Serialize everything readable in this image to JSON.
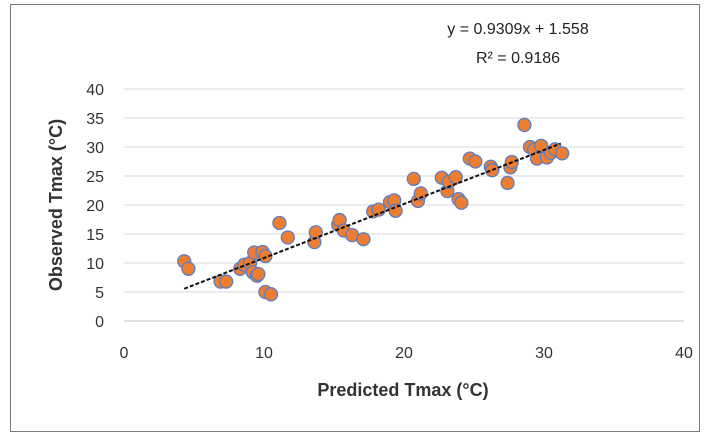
{
  "chart_data": {
    "type": "scatter",
    "title": "",
    "xlabel": "Predicted Tmax (°C)",
    "ylabel": "Observed Tmax (°C)",
    "xlim": [
      0,
      40
    ],
    "ylim": [
      0,
      40
    ],
    "x_ticks": [
      "0",
      "10",
      "20",
      "30",
      "40"
    ],
    "y_ticks": [
      "0",
      "5",
      "10",
      "15",
      "20",
      "25",
      "30",
      "35",
      "40"
    ],
    "grid": "horizontal",
    "legend": "none",
    "marker_color": "#ed7d31",
    "marker_edge_color": "#5b7fc4",
    "trendline": {
      "type": "linear",
      "slope": 0.9309,
      "intercept": 1.558,
      "x_range": [
        4.3,
        31.2
      ],
      "style": "dashed",
      "color": "#111111",
      "equation_label": "y = 0.9309x + 1.558",
      "r2_label": "R² = 0.9186"
    },
    "points": [
      {
        "x": 4.3,
        "y": 10.3
      },
      {
        "x": 4.6,
        "y": 9.0
      },
      {
        "x": 6.9,
        "y": 6.8
      },
      {
        "x": 7.3,
        "y": 6.8
      },
      {
        "x": 8.3,
        "y": 9.0
      },
      {
        "x": 8.6,
        "y": 9.7
      },
      {
        "x": 9.0,
        "y": 10.0
      },
      {
        "x": 9.2,
        "y": 8.4
      },
      {
        "x": 9.3,
        "y": 11.8
      },
      {
        "x": 9.5,
        "y": 7.8
      },
      {
        "x": 9.6,
        "y": 8.1
      },
      {
        "x": 9.9,
        "y": 11.9
      },
      {
        "x": 10.1,
        "y": 11.2
      },
      {
        "x": 10.1,
        "y": 5.0
      },
      {
        "x": 10.5,
        "y": 4.6
      },
      {
        "x": 11.1,
        "y": 16.9
      },
      {
        "x": 11.7,
        "y": 14.4
      },
      {
        "x": 13.6,
        "y": 13.6
      },
      {
        "x": 13.7,
        "y": 15.3
      },
      {
        "x": 15.3,
        "y": 16.6
      },
      {
        "x": 15.4,
        "y": 17.4
      },
      {
        "x": 15.7,
        "y": 15.6
      },
      {
        "x": 16.3,
        "y": 14.8
      },
      {
        "x": 17.1,
        "y": 14.1
      },
      {
        "x": 17.8,
        "y": 18.9
      },
      {
        "x": 18.2,
        "y": 19.2
      },
      {
        "x": 19.0,
        "y": 20.5
      },
      {
        "x": 19.3,
        "y": 20.8
      },
      {
        "x": 19.4,
        "y": 19.0
      },
      {
        "x": 20.7,
        "y": 24.5
      },
      {
        "x": 21.0,
        "y": 20.7
      },
      {
        "x": 21.2,
        "y": 22.0
      },
      {
        "x": 22.7,
        "y": 24.7
      },
      {
        "x": 23.1,
        "y": 22.4
      },
      {
        "x": 23.2,
        "y": 24.0
      },
      {
        "x": 23.7,
        "y": 24.8
      },
      {
        "x": 23.9,
        "y": 21.0
      },
      {
        "x": 24.1,
        "y": 20.4
      },
      {
        "x": 24.7,
        "y": 28.0
      },
      {
        "x": 25.1,
        "y": 27.5
      },
      {
        "x": 26.2,
        "y": 26.6
      },
      {
        "x": 26.3,
        "y": 26.0
      },
      {
        "x": 27.4,
        "y": 23.8
      },
      {
        "x": 27.6,
        "y": 26.5
      },
      {
        "x": 27.7,
        "y": 27.4
      },
      {
        "x": 28.6,
        "y": 33.8
      },
      {
        "x": 29.0,
        "y": 30.0
      },
      {
        "x": 29.3,
        "y": 29.5
      },
      {
        "x": 29.5,
        "y": 28.0
      },
      {
        "x": 29.8,
        "y": 30.2
      },
      {
        "x": 30.2,
        "y": 28.2
      },
      {
        "x": 30.5,
        "y": 29.0
      },
      {
        "x": 30.8,
        "y": 29.6
      },
      {
        "x": 31.3,
        "y": 28.9
      }
    ]
  }
}
